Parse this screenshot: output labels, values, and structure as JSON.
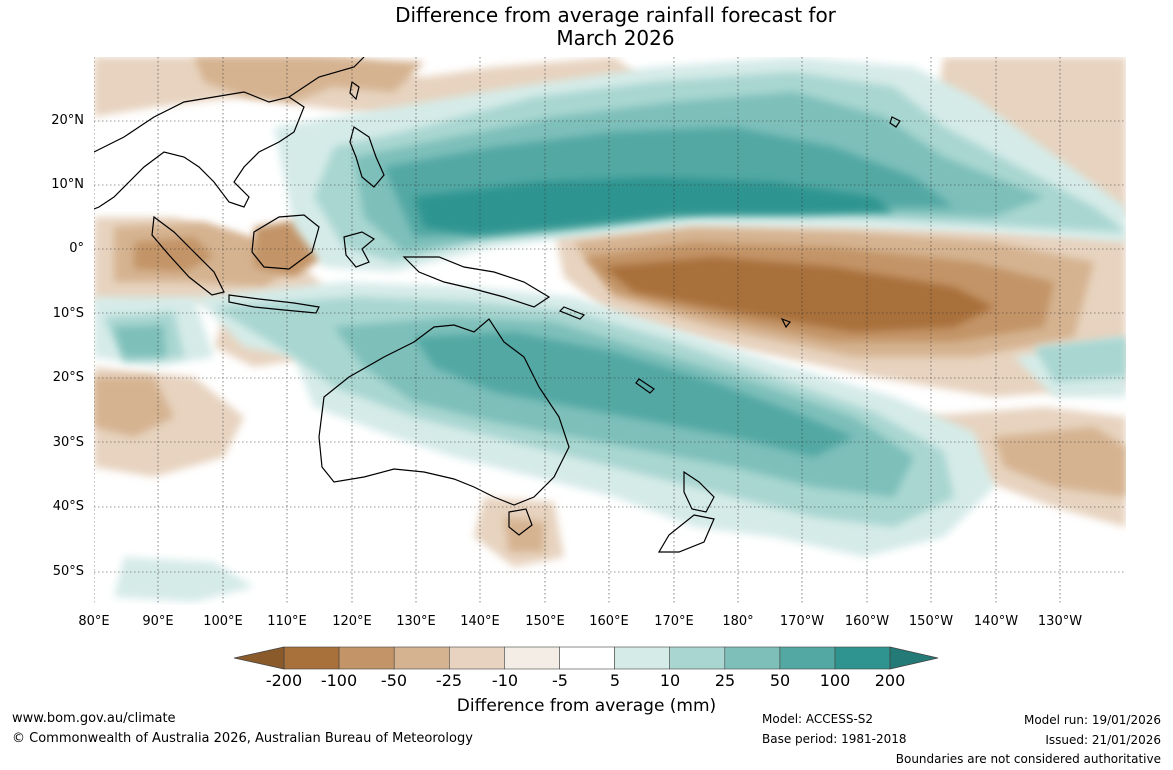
{
  "title_line1": "Difference from average rainfall forecast for",
  "title_line2": "March 2026",
  "lat_labels": [
    "20°N",
    "10°N",
    "0°",
    "10°S",
    "20°S",
    "30°S",
    "40°S",
    "50°S"
  ],
  "lon_labels": [
    "80°E",
    "90°E",
    "100°E",
    "110°E",
    "120°E",
    "130°E",
    "140°E",
    "150°E",
    "160°E",
    "170°E",
    "180°",
    "170°W",
    "160°W",
    "150°W",
    "140°W",
    "130°W"
  ],
  "colorbar": {
    "ticks": [
      "-200",
      "-100",
      "-50",
      "-25",
      "-10",
      "-5",
      "5",
      "10",
      "25",
      "50",
      "100",
      "200"
    ],
    "colors": [
      "#a8703a",
      "#c39468",
      "#d5b391",
      "#e7d3bf",
      "#f3ede5",
      "#ffffff",
      "#d5ebe8",
      "#a9d6d1",
      "#7ebfba",
      "#53a8a4",
      "#2f9490"
    ],
    "under_color": "#8b5a2b",
    "over_color": "#237a77",
    "label": "Difference from average (mm)"
  },
  "footer": {
    "website": "www.bom.gov.au/climate",
    "copyright": "© Commonwealth of Australia 2026, Australian Bureau of Meteorology",
    "model": "Model: ACCESS-S2",
    "base_period": "Base period: 1981-2018",
    "model_run": "Model run: 19/01/2026",
    "issued": "Issued: 21/01/2026",
    "disclaimer": "Boundaries are not considered authoritative"
  }
}
